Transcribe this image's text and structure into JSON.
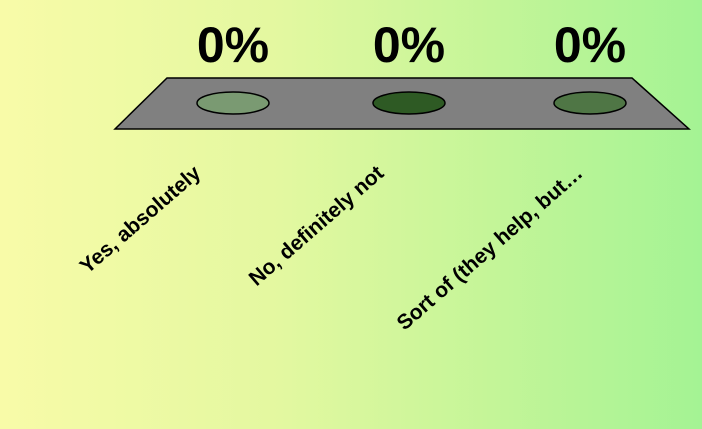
{
  "chart_data": {
    "type": "bar",
    "style": "3d-pedestal",
    "categories": [
      "Yes, absolutely",
      "No, definitely not",
      "Sort of (they help, but…"
    ],
    "values": [
      0,
      0,
      0
    ],
    "value_labels": [
      "0%",
      "0%",
      "0%"
    ],
    "ylim": [
      0,
      100
    ],
    "grid": false,
    "legend": "none"
  },
  "colors": {
    "background_left": "#f8fba8",
    "background_right": "#a4f394",
    "pedestal": "#808080",
    "series": [
      "#7a9a72",
      "#2e5a24",
      "#4f7645"
    ]
  }
}
